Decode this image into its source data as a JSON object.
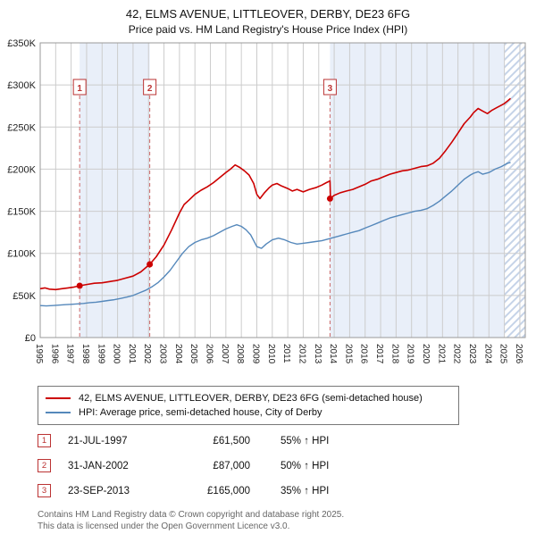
{
  "title": "42, ELMS AVENUE, LITTLEOVER, DERBY, DE23 6FG",
  "subtitle": "Price paid vs. HM Land Registry's House Price Index (HPI)",
  "legend": {
    "items": [
      {
        "label": "42, ELMS AVENUE, LITTLEOVER, DERBY, DE23 6FG (semi-detached house)"
      },
      {
        "label": "HPI: Average price, semi-detached house, City of Derby"
      }
    ]
  },
  "sales": [
    {
      "num": "1",
      "date": "21-JUL-1997",
      "price": "£61,500",
      "hpi": "55% ↑ HPI"
    },
    {
      "num": "2",
      "date": "31-JAN-2002",
      "price": "£87,000",
      "hpi": "50% ↑ HPI"
    },
    {
      "num": "3",
      "date": "23-SEP-2013",
      "price": "£165,000",
      "hpi": "35% ↑ HPI"
    }
  ],
  "footer": {
    "line1": "Contains HM Land Registry data © Crown copyright and database right 2025.",
    "line2": "This data is licensed under the Open Government Licence v3.0."
  },
  "chart_data": {
    "type": "line",
    "title": "42, ELMS AVENUE, LITTLEOVER, DERBY, DE23 6FG — Price paid vs. HPI",
    "x_range": [
      1995,
      2026.35
    ],
    "y_range": [
      0,
      350
    ],
    "y_unit": "GBP thousands",
    "x_ticks": [
      1995,
      1996,
      1997,
      1998,
      1999,
      2000,
      2001,
      2002,
      2003,
      2004,
      2005,
      2006,
      2007,
      2008,
      2009,
      2010,
      2011,
      2012,
      2013,
      2014,
      2015,
      2016,
      2017,
      2018,
      2019,
      2020,
      2021,
      2022,
      2023,
      2024,
      2025,
      2026
    ],
    "y_ticks": [
      {
        "value": 0,
        "label": "£0"
      },
      {
        "value": 50,
        "label": "£50K"
      },
      {
        "value": 100,
        "label": "£100K"
      },
      {
        "value": 150,
        "label": "£150K"
      },
      {
        "value": 200,
        "label": "£200K"
      },
      {
        "value": 250,
        "label": "£250K"
      },
      {
        "value": 300,
        "label": "£300K"
      },
      {
        "value": 350,
        "label": "£350K"
      }
    ],
    "colors": {
      "grid": "#cccccc",
      "border": "#999999",
      "band": "#e9eff9",
      "hatch_line": "#c5d3e8",
      "sale_line": "#cc6666",
      "sale_box": "#bb3333"
    },
    "bands": [
      {
        "from": 1997.55,
        "to": 2002.08
      },
      {
        "from": 2013.73,
        "to": 2025.0
      }
    ],
    "hatch": {
      "from": 2025.0,
      "to": 2026.35
    },
    "marker_box_value": 297,
    "markers": [
      {
        "n": "1",
        "x": 1997.55,
        "y": 61.5,
        "date": "21-JUL-1997",
        "price_gbp": 61500
      },
      {
        "n": "2",
        "x": 2002.08,
        "y": 87,
        "date": "31-JAN-2002",
        "price_gbp": 87000
      },
      {
        "n": "3",
        "x": 2013.73,
        "y": 165,
        "date": "23-SEP-2013",
        "price_gbp": 165000
      }
    ],
    "series": [
      {
        "name": "property-price",
        "label": "42, ELMS AVENUE, LITTLEOVER, DERBY, DE23 6FG (semi-detached house)",
        "color": "#cc0000",
        "width": 1.6,
        "points": [
          [
            1995.0,
            58
          ],
          [
            1995.3,
            59
          ],
          [
            1995.6,
            57.5
          ],
          [
            1996.0,
            57
          ],
          [
            1996.4,
            58
          ],
          [
            1996.8,
            59
          ],
          [
            1997.2,
            60
          ],
          [
            1997.55,
            61.5
          ],
          [
            1998.0,
            63
          ],
          [
            1998.5,
            64.5
          ],
          [
            1999.0,
            65
          ],
          [
            1999.5,
            66.5
          ],
          [
            2000.0,
            68
          ],
          [
            2000.5,
            70.5
          ],
          [
            2001.0,
            73
          ],
          [
            2001.5,
            78
          ],
          [
            2002.08,
            87
          ],
          [
            2002.5,
            96
          ],
          [
            2003.0,
            110
          ],
          [
            2003.5,
            128
          ],
          [
            2004.0,
            148
          ],
          [
            2004.3,
            158
          ],
          [
            2004.6,
            163
          ],
          [
            2005.0,
            170
          ],
          [
            2005.4,
            175
          ],
          [
            2005.8,
            179
          ],
          [
            2006.2,
            184
          ],
          [
            2006.6,
            190
          ],
          [
            2007.0,
            196
          ],
          [
            2007.3,
            200
          ],
          [
            2007.6,
            205
          ],
          [
            2007.9,
            202
          ],
          [
            2008.2,
            198
          ],
          [
            2008.5,
            193
          ],
          [
            2008.8,
            183
          ],
          [
            2009.0,
            170
          ],
          [
            2009.2,
            165
          ],
          [
            2009.5,
            172
          ],
          [
            2009.8,
            178
          ],
          [
            2010.0,
            181
          ],
          [
            2010.3,
            183
          ],
          [
            2010.6,
            180
          ],
          [
            2011.0,
            177
          ],
          [
            2011.3,
            174
          ],
          [
            2011.6,
            176
          ],
          [
            2012.0,
            173
          ],
          [
            2012.4,
            176
          ],
          [
            2012.8,
            178
          ],
          [
            2013.2,
            181
          ],
          [
            2013.5,
            184
          ],
          [
            2013.73,
            186
          ],
          [
            2013.76,
            165
          ],
          [
            2014.0,
            169
          ],
          [
            2014.4,
            172
          ],
          [
            2014.8,
            174
          ],
          [
            2015.2,
            176
          ],
          [
            2015.6,
            179
          ],
          [
            2016.0,
            182
          ],
          [
            2016.4,
            186
          ],
          [
            2016.8,
            188
          ],
          [
            2017.2,
            191
          ],
          [
            2017.6,
            194
          ],
          [
            2018.0,
            196
          ],
          [
            2018.4,
            198
          ],
          [
            2018.8,
            199
          ],
          [
            2019.2,
            201
          ],
          [
            2019.6,
            203
          ],
          [
            2020.0,
            204
          ],
          [
            2020.4,
            207
          ],
          [
            2020.8,
            213
          ],
          [
            2021.2,
            222
          ],
          [
            2021.6,
            232
          ],
          [
            2022.0,
            243
          ],
          [
            2022.4,
            254
          ],
          [
            2022.8,
            262
          ],
          [
            2023.0,
            267
          ],
          [
            2023.3,
            272
          ],
          [
            2023.6,
            269
          ],
          [
            2023.9,
            266
          ],
          [
            2024.2,
            270
          ],
          [
            2024.5,
            273
          ],
          [
            2024.8,
            276
          ],
          [
            2025.0,
            278
          ],
          [
            2025.2,
            281
          ],
          [
            2025.4,
            284
          ]
        ]
      },
      {
        "name": "hpi-average",
        "label": "HPI: Average price, semi-detached house, City of Derby",
        "color": "#5588bb",
        "width": 1.4,
        "points": [
          [
            1995.0,
            38
          ],
          [
            1995.4,
            37.5
          ],
          [
            1995.8,
            38
          ],
          [
            1996.2,
            38.5
          ],
          [
            1996.6,
            39
          ],
          [
            1997.0,
            39.5
          ],
          [
            1997.4,
            40
          ],
          [
            1997.8,
            40.5
          ],
          [
            1998.2,
            41.5
          ],
          [
            1998.6,
            42
          ],
          [
            1999.0,
            43
          ],
          [
            1999.4,
            44
          ],
          [
            1999.8,
            45
          ],
          [
            2000.2,
            46.5
          ],
          [
            2000.6,
            48
          ],
          [
            2001.0,
            50
          ],
          [
            2001.4,
            53
          ],
          [
            2001.8,
            56
          ],
          [
            2002.2,
            60
          ],
          [
            2002.6,
            65
          ],
          [
            2003.0,
            72
          ],
          [
            2003.4,
            80
          ],
          [
            2003.8,
            90
          ],
          [
            2004.2,
            100
          ],
          [
            2004.6,
            108
          ],
          [
            2005.0,
            113
          ],
          [
            2005.4,
            116
          ],
          [
            2005.8,
            118
          ],
          [
            2006.2,
            121
          ],
          [
            2006.6,
            125
          ],
          [
            2007.0,
            129
          ],
          [
            2007.4,
            132
          ],
          [
            2007.7,
            134
          ],
          [
            2008.0,
            132
          ],
          [
            2008.3,
            128
          ],
          [
            2008.6,
            122
          ],
          [
            2009.0,
            108
          ],
          [
            2009.3,
            106
          ],
          [
            2009.6,
            111
          ],
          [
            2010.0,
            116
          ],
          [
            2010.4,
            118
          ],
          [
            2010.8,
            116
          ],
          [
            2011.2,
            113
          ],
          [
            2011.6,
            111
          ],
          [
            2012.0,
            112
          ],
          [
            2012.4,
            113
          ],
          [
            2012.8,
            114
          ],
          [
            2013.2,
            115
          ],
          [
            2013.6,
            117
          ],
          [
            2014.0,
            119
          ],
          [
            2014.4,
            121
          ],
          [
            2014.8,
            123
          ],
          [
            2015.2,
            125
          ],
          [
            2015.6,
            127
          ],
          [
            2016.0,
            130
          ],
          [
            2016.4,
            133
          ],
          [
            2016.8,
            136
          ],
          [
            2017.2,
            139
          ],
          [
            2017.6,
            142
          ],
          [
            2018.0,
            144
          ],
          [
            2018.4,
            146
          ],
          [
            2018.8,
            148
          ],
          [
            2019.2,
            150
          ],
          [
            2019.6,
            151
          ],
          [
            2020.0,
            153
          ],
          [
            2020.4,
            157
          ],
          [
            2020.8,
            162
          ],
          [
            2021.2,
            168
          ],
          [
            2021.6,
            174
          ],
          [
            2022.0,
            181
          ],
          [
            2022.4,
            188
          ],
          [
            2022.8,
            193
          ],
          [
            2023.0,
            195
          ],
          [
            2023.3,
            197
          ],
          [
            2023.6,
            194
          ],
          [
            2024.0,
            196
          ],
          [
            2024.4,
            200
          ],
          [
            2024.8,
            203
          ],
          [
            2025.0,
            205
          ],
          [
            2025.2,
            207
          ],
          [
            2025.4,
            208
          ]
        ]
      }
    ]
  }
}
